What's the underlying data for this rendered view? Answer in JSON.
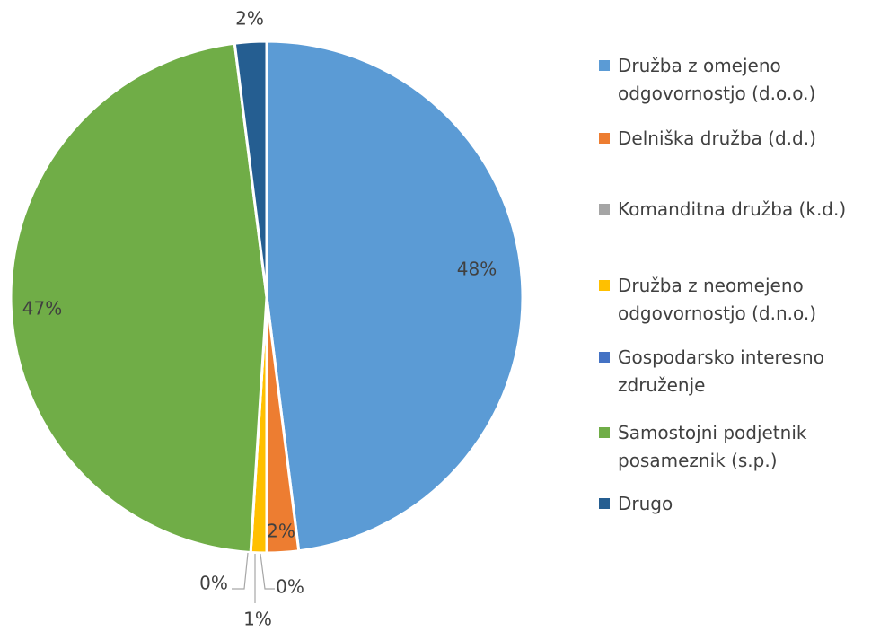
{
  "chart_data": {
    "type": "pie",
    "categories": [
      "Družba z omejeno odgovornostjo (d.o.o.)",
      "Delniška družba (d.d.)",
      "Komanditna družba (k.d.)",
      "Družba z neomejeno odgovornostjo (d.n.o.)",
      "Gospodarsko interesno združenje",
      "Samostojni podjetnik posameznik (s.p.)",
      "Drugo"
    ],
    "values": [
      48,
      2,
      0,
      1,
      0,
      47,
      2
    ],
    "value_labels": [
      "48%",
      "2%",
      "0%",
      "1%",
      "0%",
      "47%",
      "2%"
    ],
    "colors": [
      "#5b9bd5",
      "#ed7d31",
      "#a5a5a5",
      "#ffc000",
      "#4472c4",
      "#70ad47",
      "#255e91"
    ]
  }
}
